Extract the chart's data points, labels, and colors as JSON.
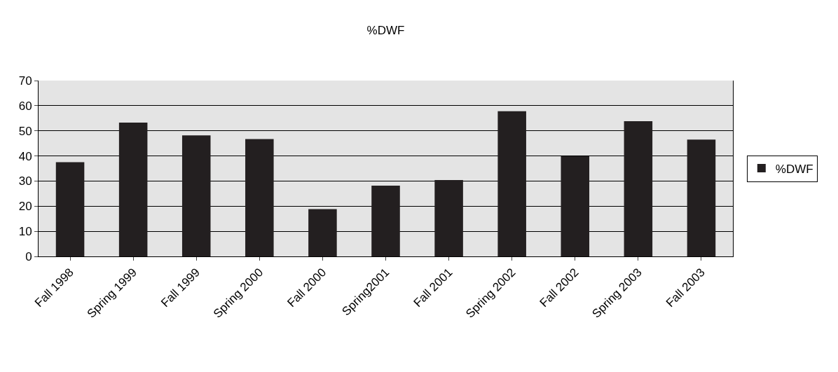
{
  "chart_data": {
    "type": "bar",
    "title": "%DWF",
    "categories": [
      "Fall 1998",
      "Spring 1999",
      "Fall 1999",
      "Spring 2000",
      "Fall 2000",
      "Spring2001",
      "Fall 2001",
      "Spring 2002",
      "Fall 2002",
      "Spring 2003",
      "Fall 2003"
    ],
    "series": [
      {
        "name": "%DWF",
        "color": "#231f20",
        "values": [
          37.5,
          53.3,
          48.2,
          46.7,
          18.8,
          28.2,
          30.4,
          57.8,
          39.9,
          53.8,
          46.5
        ]
      }
    ],
    "ylim": [
      0,
      70
    ],
    "yticks": [
      0,
      10,
      20,
      30,
      40,
      50,
      60,
      70
    ],
    "grid": "y",
    "legend": "right"
  }
}
